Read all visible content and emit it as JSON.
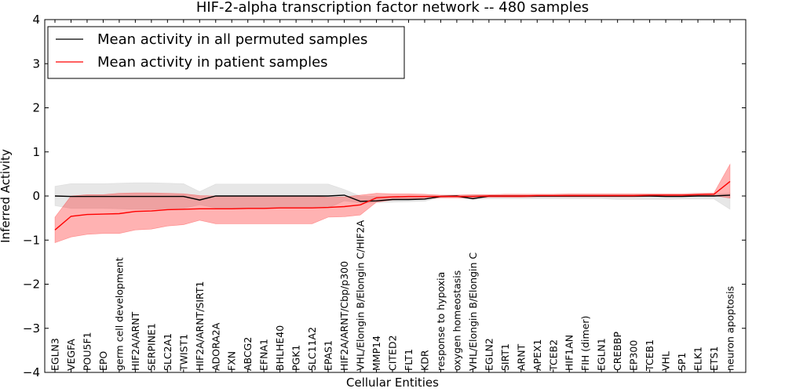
{
  "chart_data": {
    "type": "line",
    "title": "HIF-2-alpha transcription factor network -- 480 samples",
    "xlabel": "Cellular Entities",
    "ylabel": "Inferred Activity",
    "ylim": [
      -4,
      4
    ],
    "yticks": [
      "−4",
      "−3",
      "−2",
      "−1",
      "0",
      "1",
      "2",
      "3",
      "4"
    ],
    "ytick_values": [
      -4,
      -3,
      -2,
      -1,
      0,
      1,
      2,
      3,
      4
    ],
    "legend_position": "top-left",
    "categories": [
      "EGLN3",
      "VEGFA",
      "POU5F1",
      "EPO",
      "germ cell development",
      "HIF2A/ARNT",
      "SERPINE1",
      "SLC2A1",
      "TWIST1",
      "HIF2A/ARNT/SIRT1",
      "ADORA2A",
      "FXN",
      "ABCG2",
      "EFNA1",
      "BHLHE40",
      "PGK1",
      "SLC11A2",
      "EPAS1",
      "HIF2A/ARNT/Cbp/p300",
      "VHL/Elongin B/Elongin C/HIF2A",
      "MMP14",
      "CITED2",
      "FLT1",
      "KDR",
      "response to hypoxia",
      "oxygen homeostasis",
      "VHL/Elongin B/Elongin C",
      "EGLN2",
      "SIRT1",
      "ARNT",
      "APEX1",
      "TCEB2",
      "HIF1AN",
      "FIH (dimer)",
      "EGLN1",
      "CREBBP",
      "EP300",
      "TCEB1",
      "VHL",
      "SP1",
      "ELK1",
      "ETS1",
      "neuron apoptosis"
    ],
    "series": [
      {
        "name": "Mean activity in all permuted samples",
        "color": "#000000",
        "values": [
          0.0,
          -0.01,
          -0.01,
          -0.01,
          -0.01,
          -0.01,
          -0.01,
          -0.01,
          -0.01,
          -0.09,
          0.0,
          0.0,
          0.0,
          0.0,
          0.0,
          0.0,
          0.0,
          0.0,
          0.02,
          -0.12,
          -0.11,
          -0.08,
          -0.08,
          -0.07,
          -0.01,
          0.0,
          -0.06,
          0.0,
          0.0,
          0.0,
          0.0,
          0.0,
          0.0,
          0.0,
          0.0,
          0.0,
          0.0,
          0.0,
          -0.01,
          -0.01,
          0.0,
          0.0,
          0.02
        ],
        "band_upper": [
          0.22,
          0.28,
          0.28,
          0.28,
          0.29,
          0.3,
          0.3,
          0.29,
          0.28,
          0.1,
          0.27,
          0.27,
          0.27,
          0.27,
          0.27,
          0.27,
          0.27,
          0.27,
          0.15,
          0.0,
          -0.01,
          -0.01,
          -0.01,
          -0.02,
          0.01,
          0.02,
          0.02,
          0.02,
          0.02,
          0.02,
          0.02,
          0.02,
          0.03,
          0.03,
          0.03,
          0.03,
          0.03,
          0.03,
          0.03,
          0.03,
          0.04,
          0.04,
          0.06
        ],
        "band_lower": [
          -0.22,
          -0.28,
          -0.28,
          -0.28,
          -0.29,
          -0.3,
          -0.3,
          -0.29,
          -0.28,
          -0.2,
          -0.27,
          -0.27,
          -0.27,
          -0.27,
          -0.27,
          -0.27,
          -0.27,
          -0.27,
          -0.11,
          -0.16,
          -0.15,
          -0.14,
          -0.13,
          -0.12,
          -0.03,
          -0.03,
          -0.08,
          -0.06,
          -0.06,
          -0.06,
          -0.06,
          -0.06,
          -0.06,
          -0.06,
          -0.06,
          -0.08,
          -0.08,
          -0.08,
          -0.08,
          -0.07,
          -0.07,
          -0.07,
          -0.3
        ]
      },
      {
        "name": "Mean activity in patient samples",
        "color": "#ff0000",
        "values": [
          -0.77,
          -0.46,
          -0.42,
          -0.41,
          -0.4,
          -0.35,
          -0.34,
          -0.31,
          -0.3,
          -0.29,
          -0.29,
          -0.29,
          -0.28,
          -0.28,
          -0.27,
          -0.27,
          -0.27,
          -0.26,
          -0.24,
          -0.2,
          -0.04,
          -0.02,
          -0.01,
          -0.01,
          -0.01,
          -0.01,
          -0.01,
          0.0,
          0.0,
          0.0,
          0.01,
          0.01,
          0.01,
          0.01,
          0.01,
          0.01,
          0.01,
          0.02,
          0.02,
          0.02,
          0.03,
          0.04,
          0.33
        ],
        "band_upper": [
          -0.48,
          0.0,
          0.03,
          0.03,
          0.06,
          0.07,
          0.07,
          0.06,
          0.05,
          0.01,
          0.0,
          0.0,
          0.0,
          0.0,
          0.0,
          0.0,
          0.0,
          -0.03,
          -0.02,
          0.02,
          0.06,
          0.05,
          0.05,
          0.04,
          0.02,
          0.02,
          0.03,
          0.03,
          0.04,
          0.04,
          0.04,
          0.04,
          0.05,
          0.05,
          0.05,
          0.05,
          0.05,
          0.05,
          0.05,
          0.05,
          0.06,
          0.07,
          0.72
        ],
        "band_lower": [
          -1.06,
          -0.93,
          -0.87,
          -0.85,
          -0.85,
          -0.77,
          -0.75,
          -0.68,
          -0.65,
          -0.55,
          -0.63,
          -0.63,
          -0.63,
          -0.63,
          -0.63,
          -0.63,
          -0.63,
          -0.48,
          -0.47,
          -0.43,
          -0.14,
          -0.09,
          -0.07,
          -0.06,
          -0.04,
          -0.04,
          -0.05,
          -0.03,
          -0.03,
          -0.03,
          -0.02,
          -0.02,
          -0.02,
          -0.02,
          -0.02,
          -0.02,
          -0.02,
          -0.01,
          -0.01,
          -0.01,
          0.0,
          0.01,
          -0.05
        ]
      }
    ]
  },
  "colors": {
    "gray_band": "#d3d3d3",
    "red_band": "#ff0000",
    "axis": "#000000"
  }
}
